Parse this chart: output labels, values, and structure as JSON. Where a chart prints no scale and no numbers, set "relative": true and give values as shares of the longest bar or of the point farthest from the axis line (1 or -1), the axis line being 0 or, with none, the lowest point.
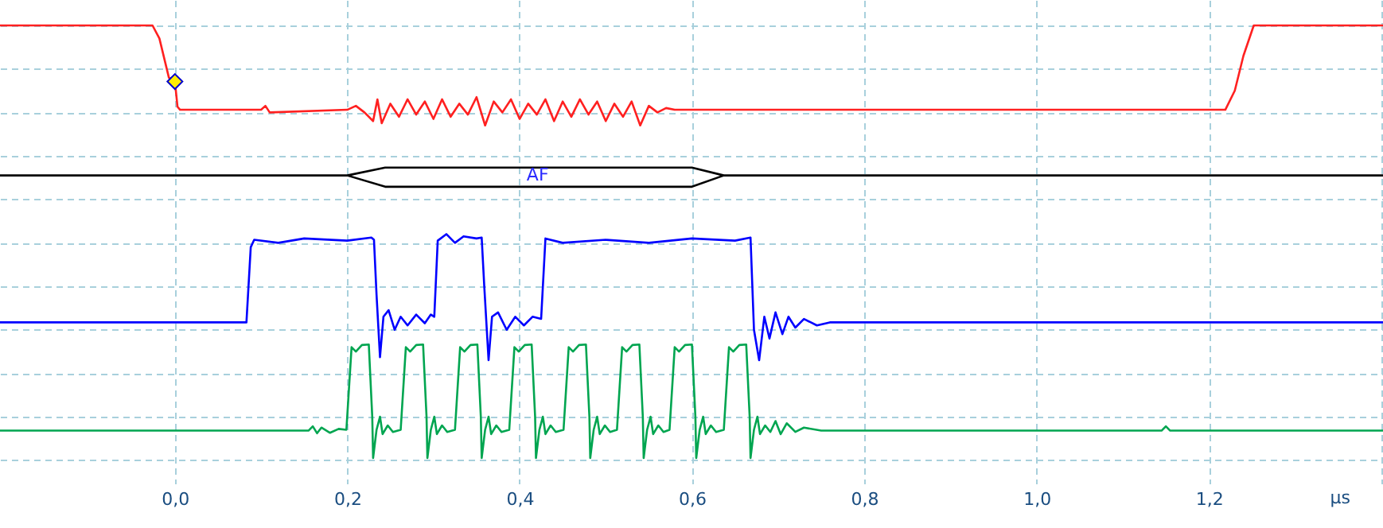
{
  "chart_data": {
    "type": "line",
    "relative": true,
    "xlabel": "µs",
    "xlim": [
      -0.203,
      1.402
    ],
    "xticks": [
      {
        "value": 0,
        "label": "0,0"
      },
      {
        "value": 0.2,
        "label": "0,2"
      },
      {
        "value": 0.4,
        "label": "0,4"
      },
      {
        "value": 0.6,
        "label": "0,6"
      },
      {
        "value": 0.8,
        "label": "0,8"
      },
      {
        "value": 1,
        "label": "1,0"
      },
      {
        "value": 1.2,
        "label": "1,2"
      },
      {
        "value": 1.4,
        "label": null
      }
    ],
    "grid": true,
    "line_style": "solid",
    "annotations": [
      {
        "text": "AF",
        "x": 0.421,
        "y": 0.655
      }
    ],
    "series": [
      {
        "color": "#ff2020",
        "x": [
          -0.203,
          -0.026,
          -0.018,
          -0.007,
          0,
          0.003,
          0.006,
          0.1,
          0.105,
          0.11,
          0.2,
          0.21,
          0.22,
          0.23,
          0.235,
          0.24,
          0.25,
          0.26,
          0.27,
          0.28,
          0.29,
          0.3,
          0.31,
          0.32,
          0.33,
          0.34,
          0.35,
          0.36,
          0.37,
          0.38,
          0.39,
          0.4,
          0.41,
          0.42,
          0.43,
          0.44,
          0.45,
          0.46,
          0.47,
          0.48,
          0.49,
          0.5,
          0.51,
          0.52,
          0.53,
          0.54,
          0.55,
          0.56,
          0.57,
          0.58,
          1.219,
          1.23,
          1.24,
          1.252,
          1.402
        ],
        "values": [
          1,
          1,
          0.97,
          0.88,
          0.871,
          0.813,
          0.806,
          0.806,
          0.815,
          0.8,
          0.806,
          0.815,
          0.8,
          0.78,
          0.83,
          0.775,
          0.82,
          0.79,
          0.83,
          0.795,
          0.825,
          0.785,
          0.83,
          0.79,
          0.82,
          0.795,
          0.835,
          0.77,
          0.825,
          0.8,
          0.83,
          0.785,
          0.82,
          0.795,
          0.83,
          0.78,
          0.825,
          0.79,
          0.83,
          0.795,
          0.825,
          0.78,
          0.82,
          0.79,
          0.825,
          0.77,
          0.815,
          0.8,
          0.81,
          0.806,
          0.806,
          0.85,
          0.93,
          1,
          1
        ]
      },
      {
        "type": "scatter",
        "marker": "diamond",
        "color": "#ffee00",
        "x": [
          0
        ],
        "values": [
          0.871
        ]
      },
      {
        "color": "#000000",
        "x": [
          -0.203,
          0.2,
          0.244,
          0.6,
          0.637,
          1.402
        ],
        "values": [
          0.655,
          0.655,
          0.673,
          0.673,
          0.655,
          0.655
        ]
      },
      {
        "color": "#000000",
        "x": [
          0.2,
          0.244,
          0.6,
          0.637
        ],
        "values": [
          0.655,
          0.629,
          0.629,
          0.655
        ]
      },
      {
        "color": "#0000ff",
        "x": [
          -0.203,
          0.083,
          0.088,
          0.092,
          0.12,
          0.15,
          0.2,
          0.228,
          0.231,
          0.234,
          0.238,
          0.242,
          0.248,
          0.255,
          0.262,
          0.27,
          0.28,
          0.29,
          0.297,
          0.301,
          0.305,
          0.315,
          0.325,
          0.335,
          0.35,
          0.356,
          0.359,
          0.364,
          0.368,
          0.375,
          0.385,
          0.395,
          0.405,
          0.415,
          0.425,
          0.43,
          0.45,
          0.5,
          0.55,
          0.6,
          0.65,
          0.668,
          0.672,
          0.678,
          0.684,
          0.69,
          0.697,
          0.705,
          0.712,
          0.72,
          0.73,
          0.745,
          0.76,
          1.402
        ],
        "values": [
          0.317,
          0.317,
          0.49,
          0.507,
          0.5,
          0.51,
          0.505,
          0.512,
          0.507,
          0.38,
          0.237,
          0.33,
          0.345,
          0.3,
          0.33,
          0.31,
          0.335,
          0.315,
          0.335,
          0.33,
          0.505,
          0.52,
          0.5,
          0.515,
          0.51,
          0.512,
          0.4,
          0.23,
          0.33,
          0.34,
          0.3,
          0.33,
          0.31,
          0.33,
          0.325,
          0.51,
          0.5,
          0.507,
          0.5,
          0.51,
          0.505,
          0.512,
          0.3,
          0.23,
          0.33,
          0.28,
          0.34,
          0.29,
          0.33,
          0.305,
          0.325,
          0.31,
          0.317,
          0.317
        ]
      },
      {
        "color": "#00a550",
        "x": [
          -0.203,
          0.155,
          0.16,
          0.165,
          0.17,
          0.18,
          0.19,
          0.199,
          0.205,
          0.21,
          0.217,
          0.225,
          0.229,
          0.23,
          0.234,
          0.238,
          0.241,
          0.247,
          0.253,
          0.262,
          0.268,
          0.273,
          0.28,
          0.288,
          0.292,
          0.293,
          0.297,
          0.301,
          0.304,
          0.31,
          0.316,
          0.325,
          0.331,
          0.336,
          0.343,
          0.351,
          0.355,
          0.356,
          0.36,
          0.364,
          0.367,
          0.373,
          0.379,
          0.388,
          0.394,
          0.399,
          0.406,
          0.414,
          0.418,
          0.419,
          0.423,
          0.427,
          0.43,
          0.436,
          0.442,
          0.451,
          0.457,
          0.462,
          0.469,
          0.477,
          0.481,
          0.482,
          0.486,
          0.49,
          0.493,
          0.499,
          0.505,
          0.513,
          0.519,
          0.524,
          0.531,
          0.539,
          0.543,
          0.544,
          0.548,
          0.552,
          0.555,
          0.561,
          0.567,
          0.574,
          0.58,
          0.585,
          0.592,
          0.6,
          0.604,
          0.605,
          0.609,
          0.613,
          0.616,
          0.622,
          0.628,
          0.637,
          0.643,
          0.648,
          0.655,
          0.663,
          0.667,
          0.668,
          0.672,
          0.676,
          0.679,
          0.685,
          0.691,
          0.697,
          0.703,
          0.71,
          0.72,
          0.73,
          0.75,
          1.145,
          1.15,
          1.155,
          1.402
        ],
        "values": [
          0.068,
          0.068,
          0.078,
          0.062,
          0.075,
          0.063,
          0.072,
          0.07,
          0.26,
          0.25,
          0.265,
          0.266,
          0.1,
          0.005,
          0.07,
          0.1,
          0.06,
          0.08,
          0.065,
          0.07,
          0.26,
          0.25,
          0.265,
          0.266,
          0.1,
          0.005,
          0.07,
          0.1,
          0.06,
          0.08,
          0.065,
          0.07,
          0.26,
          0.25,
          0.265,
          0.266,
          0.1,
          0.005,
          0.07,
          0.1,
          0.06,
          0.08,
          0.065,
          0.07,
          0.26,
          0.25,
          0.265,
          0.266,
          0.1,
          0.005,
          0.07,
          0.1,
          0.06,
          0.08,
          0.065,
          0.07,
          0.26,
          0.25,
          0.265,
          0.266,
          0.1,
          0.005,
          0.07,
          0.1,
          0.06,
          0.08,
          0.065,
          0.07,
          0.26,
          0.25,
          0.265,
          0.266,
          0.1,
          0.005,
          0.07,
          0.1,
          0.06,
          0.08,
          0.065,
          0.07,
          0.26,
          0.25,
          0.265,
          0.266,
          0.1,
          0.005,
          0.07,
          0.1,
          0.06,
          0.08,
          0.065,
          0.07,
          0.26,
          0.25,
          0.265,
          0.266,
          0.1,
          0.005,
          0.07,
          0.1,
          0.06,
          0.08,
          0.065,
          0.09,
          0.06,
          0.085,
          0.065,
          0.075,
          0.068,
          0.068,
          0.078,
          0.068,
          0.068
        ]
      }
    ]
  }
}
